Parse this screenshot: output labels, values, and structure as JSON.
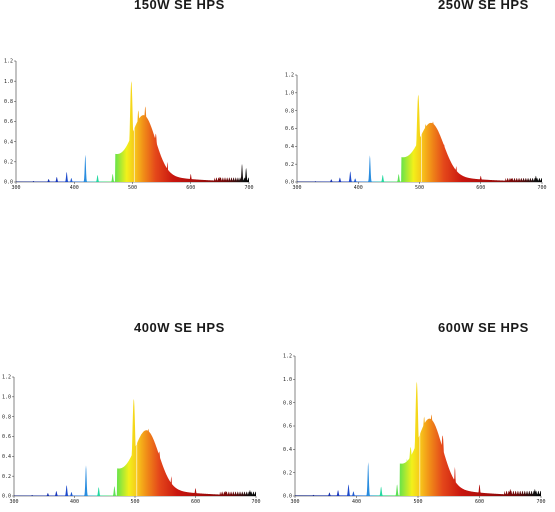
{
  "chart_data": [
    {
      "type": "area",
      "title": "150W SE HPS",
      "xlim": [
        300,
        700
      ],
      "ylim": [
        0,
        1.2
      ],
      "x_ticks": [
        "300",
        "400",
        "500",
        "600",
        "700"
      ],
      "y_ticks": [
        "0.0",
        "0.2",
        "0.4",
        "0.6",
        "0.8",
        "1.0",
        "1.2"
      ],
      "peaks": [
        {
          "x": 330,
          "y": 0.01
        },
        {
          "x": 356,
          "y": 0.03
        },
        {
          "x": 370,
          "y": 0.05
        },
        {
          "x": 387,
          "y": 0.1
        },
        {
          "x": 395,
          "y": 0.04
        },
        {
          "x": 419,
          "y": 0.27
        },
        {
          "x": 440,
          "y": 0.07
        },
        {
          "x": 466,
          "y": 0.08
        },
        {
          "x": 480,
          "y": 0.2
        },
        {
          "x": 485,
          "y": 0.27
        },
        {
          "x": 498,
          "y": 1.0
        },
        {
          "x": 510,
          "y": 0.71
        },
        {
          "x": 522,
          "y": 0.75
        },
        {
          "x": 540,
          "y": 0.48
        },
        {
          "x": 560,
          "y": 0.2
        },
        {
          "x": 600,
          "y": 0.08
        },
        {
          "x": 650,
          "y": 0.05
        },
        {
          "x": 688,
          "y": 0.18
        },
        {
          "x": 695,
          "y": 0.14
        }
      ]
    },
    {
      "type": "area",
      "title": "250W SE HPS",
      "xlim": [
        300,
        700
      ],
      "ylim": [
        0,
        1.2
      ],
      "x_ticks": [
        "300",
        "400",
        "500",
        "600",
        "700"
      ],
      "y_ticks": [
        "0.0",
        "0.2",
        "0.4",
        "0.6",
        "0.8",
        "1.0",
        "1.2"
      ],
      "peaks": [
        {
          "x": 330,
          "y": 0.01
        },
        {
          "x": 356,
          "y": 0.03
        },
        {
          "x": 370,
          "y": 0.05
        },
        {
          "x": 387,
          "y": 0.12
        },
        {
          "x": 395,
          "y": 0.04
        },
        {
          "x": 419,
          "y": 0.3
        },
        {
          "x": 440,
          "y": 0.08
        },
        {
          "x": 466,
          "y": 0.09
        },
        {
          "x": 480,
          "y": 0.2
        },
        {
          "x": 485,
          "y": 0.3
        },
        {
          "x": 498,
          "y": 0.98
        },
        {
          "x": 510,
          "y": 0.65
        },
        {
          "x": 522,
          "y": 0.68
        },
        {
          "x": 540,
          "y": 0.42
        },
        {
          "x": 560,
          "y": 0.18
        },
        {
          "x": 600,
          "y": 0.07
        },
        {
          "x": 650,
          "y": 0.04
        },
        {
          "x": 690,
          "y": 0.07
        }
      ]
    },
    {
      "type": "area",
      "title": "400W SE HPS",
      "xlim": [
        300,
        700
      ],
      "ylim": [
        0,
        1.2
      ],
      "x_ticks": [
        "300",
        "400",
        "500",
        "600",
        "700"
      ],
      "y_ticks": [
        "0.0",
        "0.2",
        "0.4",
        "0.6",
        "0.8",
        "1.0",
        "1.2"
      ],
      "peaks": [
        {
          "x": 330,
          "y": 0.01
        },
        {
          "x": 356,
          "y": 0.03
        },
        {
          "x": 370,
          "y": 0.05
        },
        {
          "x": 387,
          "y": 0.11
        },
        {
          "x": 395,
          "y": 0.04
        },
        {
          "x": 419,
          "y": 0.31
        },
        {
          "x": 440,
          "y": 0.09
        },
        {
          "x": 466,
          "y": 0.1
        },
        {
          "x": 480,
          "y": 0.22
        },
        {
          "x": 485,
          "y": 0.3
        },
        {
          "x": 498,
          "y": 0.98
        },
        {
          "x": 510,
          "y": 0.62
        },
        {
          "x": 522,
          "y": 0.68
        },
        {
          "x": 540,
          "y": 0.45
        },
        {
          "x": 560,
          "y": 0.2
        },
        {
          "x": 600,
          "y": 0.08
        },
        {
          "x": 650,
          "y": 0.05
        },
        {
          "x": 690,
          "y": 0.06
        }
      ]
    },
    {
      "type": "area",
      "title": "600W SE HPS",
      "xlim": [
        300,
        700
      ],
      "ylim": [
        0,
        1.2
      ],
      "x_ticks": [
        "300",
        "400",
        "500",
        "600",
        "700"
      ],
      "y_ticks": [
        "0.0",
        "0.2",
        "0.4",
        "0.6",
        "0.8",
        "1.0",
        "1.2"
      ],
      "peaks": [
        {
          "x": 330,
          "y": 0.01
        },
        {
          "x": 356,
          "y": 0.03
        },
        {
          "x": 370,
          "y": 0.05
        },
        {
          "x": 387,
          "y": 0.1
        },
        {
          "x": 395,
          "y": 0.04
        },
        {
          "x": 419,
          "y": 0.29
        },
        {
          "x": 440,
          "y": 0.08
        },
        {
          "x": 466,
          "y": 0.1
        },
        {
          "x": 482,
          "y": 0.32
        },
        {
          "x": 488,
          "y": 0.42
        },
        {
          "x": 498,
          "y": 0.98
        },
        {
          "x": 510,
          "y": 0.68
        },
        {
          "x": 522,
          "y": 0.7
        },
        {
          "x": 540,
          "y": 0.52
        },
        {
          "x": 560,
          "y": 0.25
        },
        {
          "x": 600,
          "y": 0.1
        },
        {
          "x": 650,
          "y": 0.06
        },
        {
          "x": 690,
          "y": 0.06
        }
      ]
    }
  ]
}
